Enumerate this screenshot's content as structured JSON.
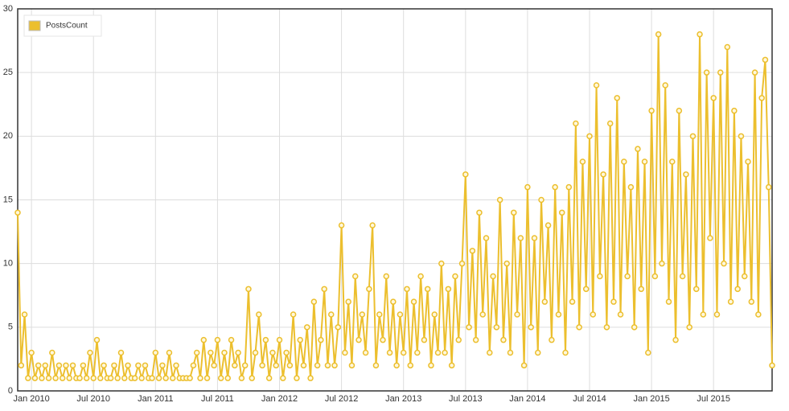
{
  "chart_data": {
    "type": "line",
    "categories": [
      null,
      null,
      null,
      null,
      "Jan 2010",
      null,
      null,
      null,
      null,
      null,
      null,
      null,
      null,
      null,
      null,
      null,
      null,
      null,
      null,
      null,
      null,
      null,
      "Jul 2010",
      null,
      null,
      null,
      null,
      null,
      null,
      null,
      null,
      null,
      null,
      null,
      null,
      null,
      null,
      null,
      null,
      null,
      "Jan 2011",
      null,
      null,
      null,
      null,
      null,
      null,
      null,
      null,
      null,
      null,
      null,
      null,
      null,
      null,
      null,
      null,
      null,
      "Jul 2011",
      null,
      null,
      null,
      null,
      null,
      null,
      null,
      null,
      null,
      null,
      null,
      null,
      null,
      null,
      null,
      null,
      null,
      "Jan 2012",
      null,
      null,
      null,
      null,
      null,
      null,
      null,
      null,
      null,
      null,
      null,
      null,
      null,
      null,
      null,
      null,
      null,
      "Jul 2012",
      null,
      null,
      null,
      null,
      null,
      null,
      null,
      null,
      null,
      null,
      null,
      null,
      null,
      null,
      null,
      null,
      null,
      "Jan 2013",
      null,
      null,
      null,
      null,
      null,
      null,
      null,
      null,
      null,
      null,
      null,
      null,
      null,
      null,
      null,
      null,
      null,
      "Jul 2013",
      null,
      null,
      null,
      null,
      null,
      null,
      null,
      null,
      null,
      null,
      null,
      null,
      null,
      null,
      null,
      null,
      null,
      "Jan 2014",
      null,
      null,
      null,
      null,
      null,
      null,
      null,
      null,
      null,
      null,
      null,
      null,
      null,
      null,
      null,
      null,
      null,
      "Jul 2014",
      null,
      null,
      null,
      null,
      null,
      null,
      null,
      null,
      null,
      null,
      null,
      null,
      null,
      null,
      null,
      null,
      null,
      "Jan 2015",
      null,
      null,
      null,
      null,
      null,
      null,
      null,
      null,
      null,
      null,
      null,
      null,
      null,
      null,
      null,
      null,
      null,
      "Jul 2015",
      null,
      null,
      null,
      null,
      null,
      null,
      null,
      null,
      null,
      null,
      null,
      null,
      null,
      null,
      null,
      null,
      null
    ],
    "series": [
      {
        "name": "PostsCount",
        "color": "#ecbf2e",
        "values": [
          14,
          2,
          6,
          1,
          3,
          1,
          2,
          1,
          2,
          1,
          3,
          1,
          2,
          1,
          2,
          1,
          2,
          1,
          1,
          2,
          1,
          3,
          1,
          4,
          1,
          2,
          1,
          1,
          2,
          1,
          3,
          1,
          2,
          1,
          1,
          2,
          1,
          2,
          1,
          1,
          3,
          1,
          2,
          1,
          3,
          1,
          2,
          1,
          1,
          1,
          1,
          2,
          3,
          1,
          4,
          1,
          3,
          2,
          4,
          1,
          3,
          1,
          4,
          2,
          3,
          1,
          2,
          8,
          1,
          3,
          6,
          2,
          4,
          1,
          3,
          2,
          4,
          1,
          3,
          2,
          6,
          1,
          4,
          2,
          5,
          1,
          7,
          2,
          4,
          8,
          2,
          6,
          2,
          5,
          13,
          3,
          7,
          2,
          9,
          4,
          6,
          3,
          8,
          13,
          2,
          6,
          4,
          9,
          3,
          7,
          2,
          6,
          3,
          8,
          2,
          7,
          3,
          9,
          4,
          8,
          2,
          6,
          3,
          10,
          3,
          8,
          2,
          9,
          4,
          10,
          17,
          5,
          11,
          4,
          14,
          6,
          12,
          3,
          9,
          5,
          15,
          4,
          10,
          3,
          14,
          6,
          12,
          2,
          16,
          5,
          12,
          3,
          15,
          7,
          13,
          4,
          16,
          6,
          14,
          3,
          16,
          7,
          21,
          5,
          18,
          8,
          20,
          6,
          24,
          9,
          17,
          5,
          21,
          7,
          23,
          6,
          18,
          9,
          16,
          5,
          19,
          8,
          18,
          3,
          22,
          9,
          28,
          10,
          24,
          7,
          18,
          4,
          22,
          9,
          17,
          5,
          20,
          8,
          28,
          6,
          25,
          12,
          23,
          6,
          25,
          10,
          27,
          7,
          22,
          8,
          20,
          9,
          18,
          7,
          25,
          6,
          23,
          26,
          16,
          2
        ]
      }
    ],
    "ylim": [
      0,
      30
    ],
    "yticks": [
      0,
      5,
      10,
      15,
      20,
      25,
      30
    ],
    "grid": true,
    "legend": "upper left"
  }
}
